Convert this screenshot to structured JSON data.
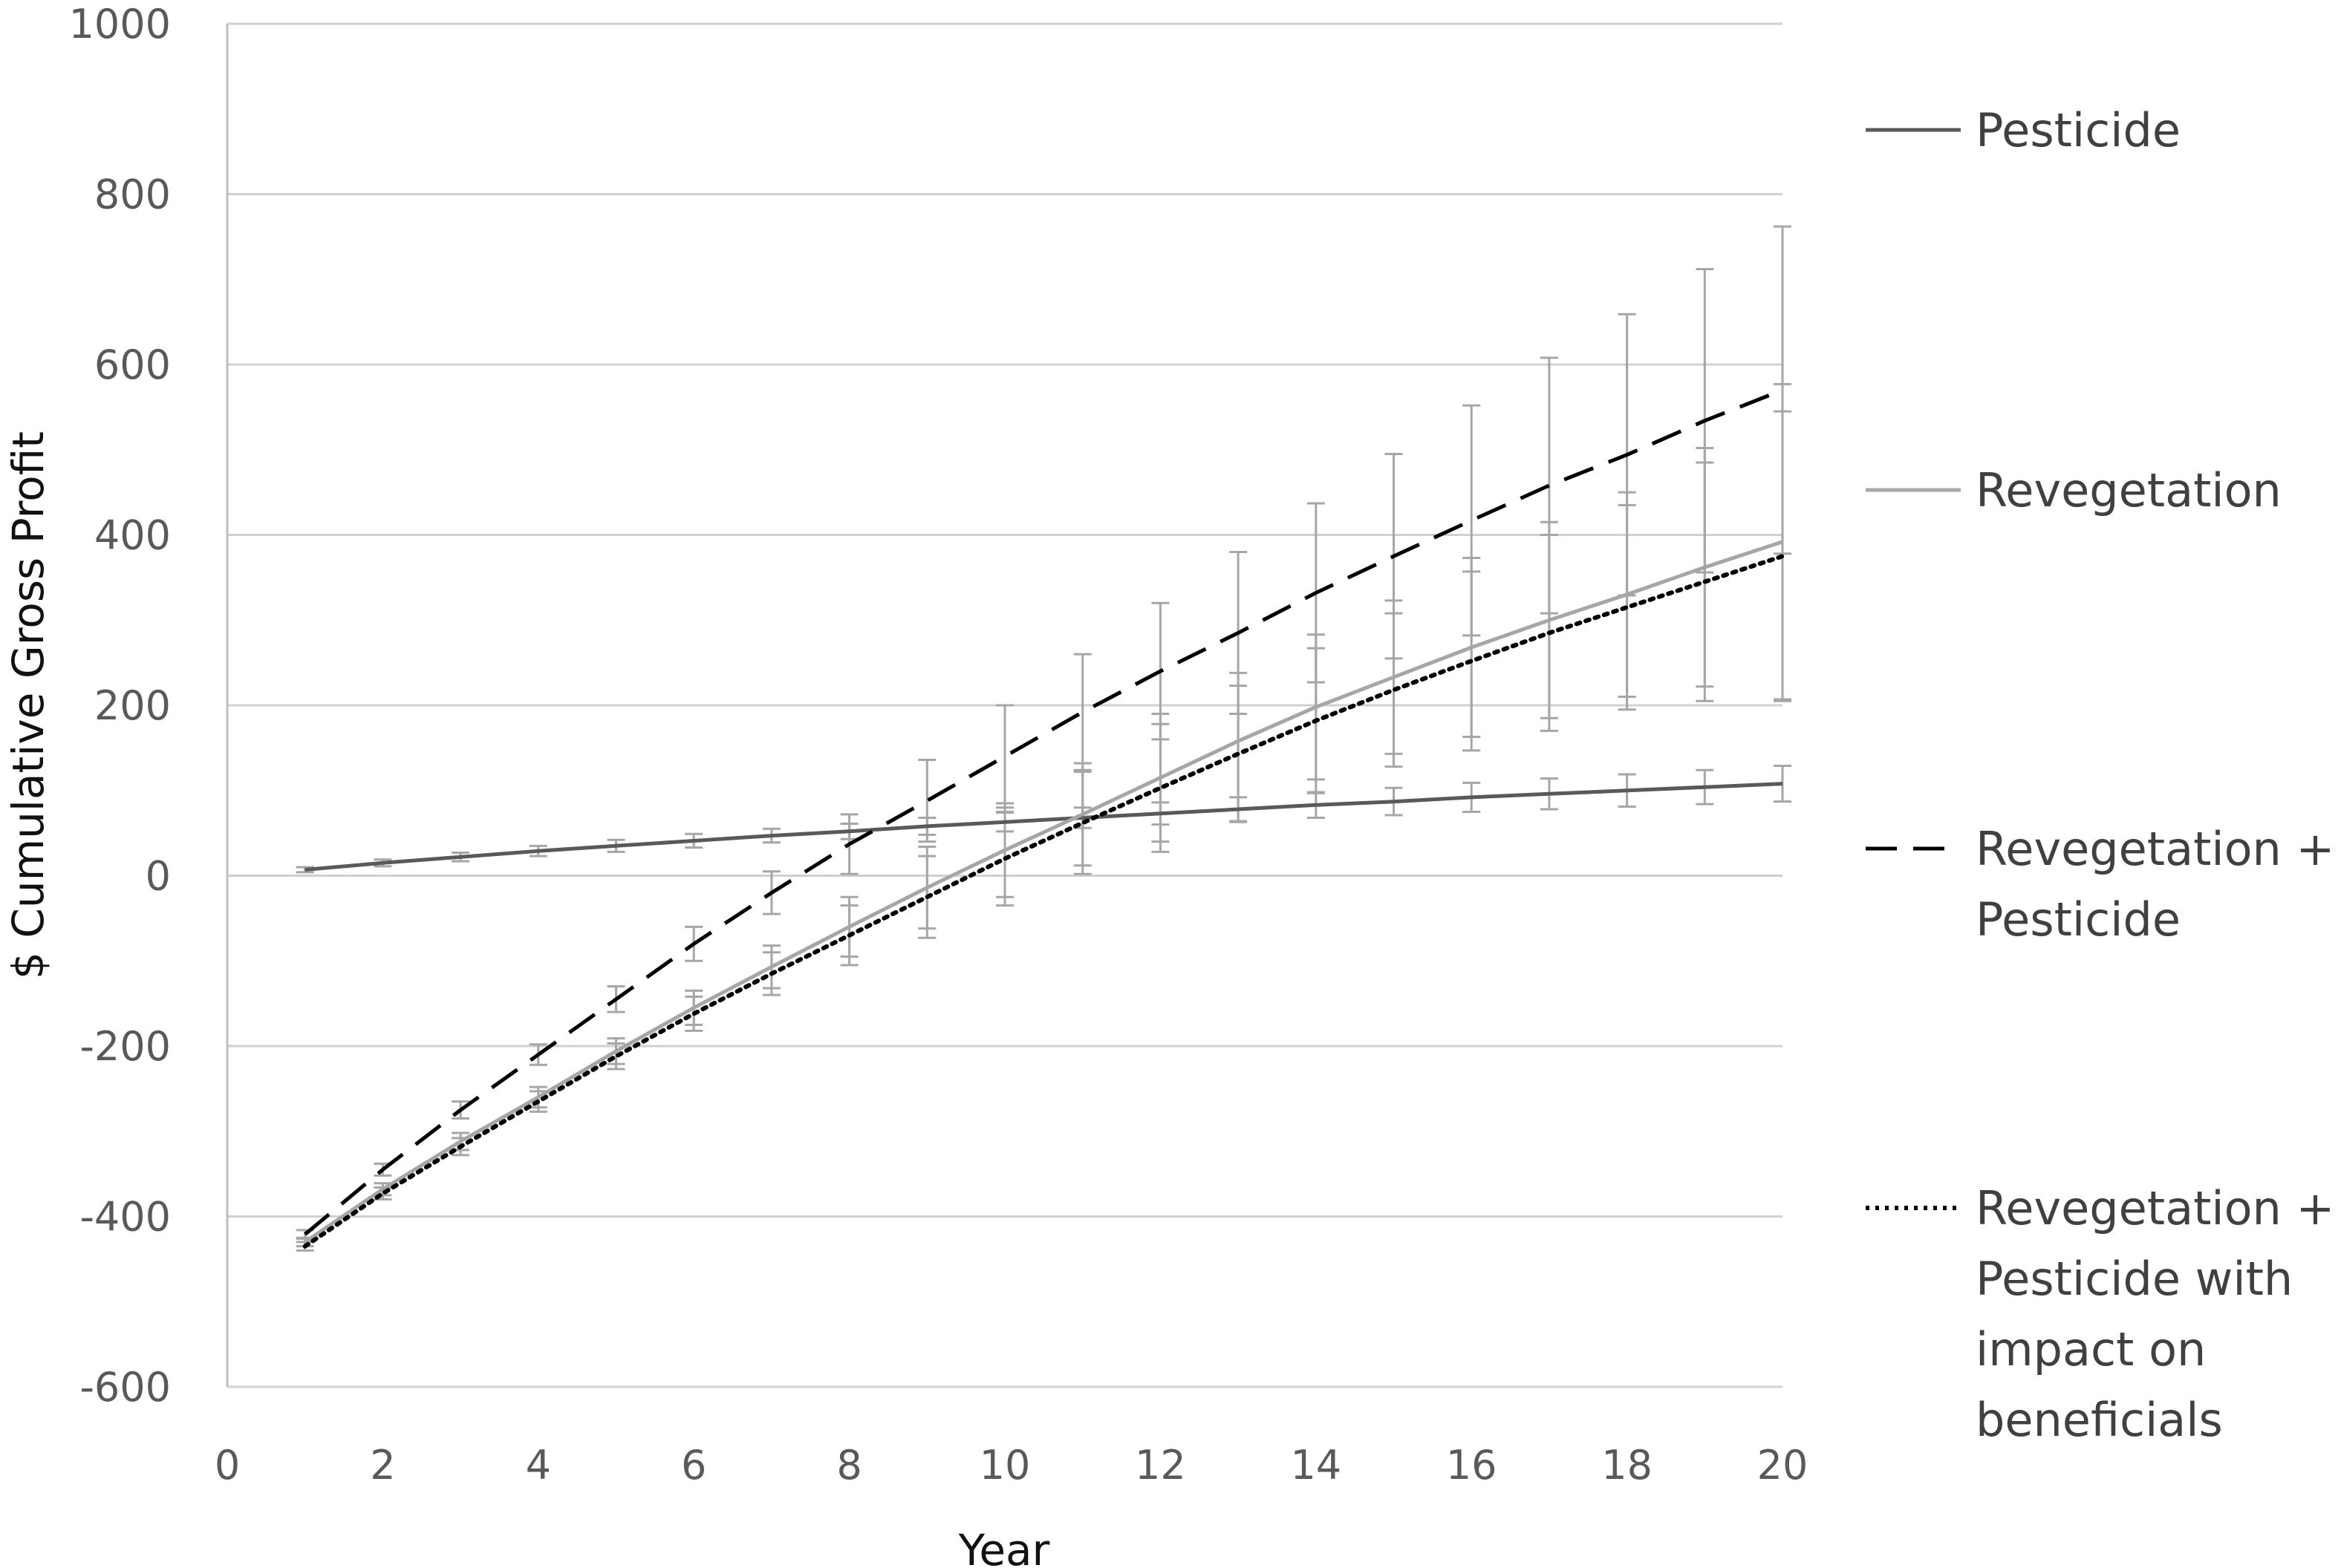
{
  "chart_data": {
    "type": "line",
    "title": "",
    "xlabel": "Year",
    "ylabel": "$ Cumulative Gross Profit",
    "xlim": [
      0,
      20
    ],
    "ylim": [
      -600,
      1000
    ],
    "xticks": [
      0,
      2,
      4,
      6,
      8,
      10,
      12,
      14,
      16,
      18,
      20
    ],
    "yticks": [
      -600,
      -400,
      -200,
      0,
      200,
      400,
      600,
      800,
      1000
    ],
    "grid": "horizontal",
    "legend_position": "right",
    "x": [
      1,
      2,
      3,
      4,
      5,
      6,
      7,
      8,
      9,
      10,
      11,
      12,
      13,
      14,
      15,
      16,
      17,
      18,
      19,
      20
    ],
    "series": [
      {
        "name": "Pesticide",
        "style": "solid",
        "color": "#595959",
        "values": [
          7,
          15,
          22,
          29,
          35,
          41,
          47,
          52,
          58,
          63,
          68,
          73,
          78,
          83,
          87,
          92,
          96,
          100,
          104,
          108
        ],
        "error": [
          3,
          4,
          5,
          6,
          7,
          8,
          8,
          9,
          10,
          11,
          12,
          13,
          14,
          15,
          16,
          17,
          18,
          19,
          20,
          21
        ]
      },
      {
        "name": "Revegetation",
        "style": "solid",
        "color": "#a6a6a6",
        "values": [
          -430,
          -368,
          -312,
          -260,
          -206,
          -155,
          -107,
          -60,
          -14,
          30,
          72,
          115,
          158,
          198,
          233,
          268,
          300,
          330,
          362,
          392
        ],
        "error": [
          5,
          7,
          10,
          12,
          15,
          20,
          25,
          35,
          48,
          55,
          60,
          75,
          80,
          85,
          90,
          105,
          115,
          120,
          140,
          185
        ]
      },
      {
        "name": "Revegetation + Pesticide",
        "style": "dashed",
        "color": "#000000",
        "values": [
          -421,
          -345,
          -275,
          -210,
          -145,
          -80,
          -20,
          37,
          88,
          140,
          192,
          240,
          285,
          332,
          375,
          417,
          458,
          494,
          534,
          570
        ],
        "error": [
          5,
          7,
          10,
          12,
          15,
          20,
          25,
          35,
          48,
          60,
          68,
          80,
          95,
          105,
          120,
          135,
          150,
          165,
          178,
          192
        ]
      },
      {
        "name": "Revegetation + Pesticide with impact on beneficials",
        "style": "dotted",
        "color": "#000000",
        "values": [
          -435,
          -373,
          -318,
          -265,
          -212,
          -162,
          -115,
          -70,
          -25,
          20,
          62,
          103,
          143,
          182,
          218,
          252,
          285,
          315,
          345,
          375
        ],
        "error": [
          5,
          7,
          10,
          12,
          15,
          20,
          25,
          35,
          48,
          55,
          60,
          75,
          80,
          85,
          90,
          105,
          115,
          120,
          140,
          170
        ]
      }
    ],
    "legend": [
      {
        "label_lines": [
          "Pesticide"
        ]
      },
      {
        "label_lines": [
          "Revegetation"
        ]
      },
      {
        "label_lines": [
          "Revegetation +",
          "Pesticide"
        ]
      },
      {
        "label_lines": [
          "Revegetation +",
          "Pesticide with",
          "impact on",
          "beneficials"
        ]
      }
    ]
  }
}
